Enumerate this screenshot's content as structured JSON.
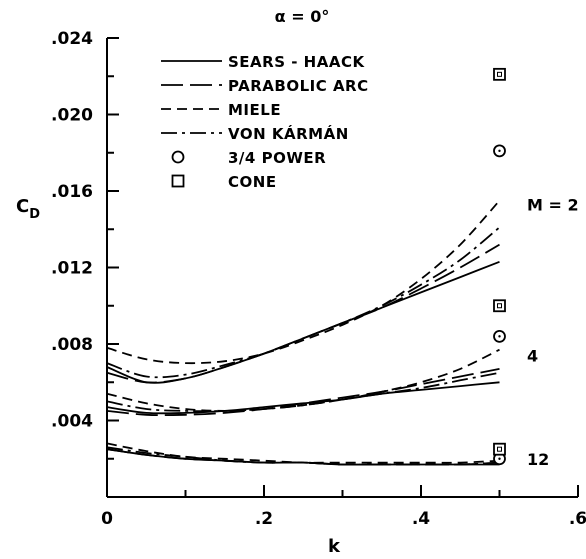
{
  "chart_data": {
    "type": "line",
    "title": "α = 0°",
    "xlabel": "k",
    "ylabel": "C_D",
    "xlim": [
      0,
      0.6
    ],
    "ylim": [
      0,
      0.024
    ],
    "grid": false,
    "legend_placement": "top-left",
    "x_ticks": [
      {
        "value": 0,
        "label": "0"
      },
      {
        "value": 0.2,
        "label": ".2"
      },
      {
        "value": 0.4,
        "label": ".4"
      },
      {
        "value": 0.6,
        "label": ".6"
      }
    ],
    "y_ticks": [
      {
        "value": 0.004,
        "label": ".004"
      },
      {
        "value": 0.008,
        "label": ".008"
      },
      {
        "value": 0.012,
        "label": ".012"
      },
      {
        "value": 0.016,
        "label": ".016"
      },
      {
        "value": 0.02,
        "label": ".020"
      },
      {
        "value": 0.024,
        "label": ".024"
      }
    ],
    "legend": [
      {
        "label": "SEARS - HAACK",
        "style": "solid"
      },
      {
        "label": "PARABOLIC ARC",
        "style": "longdash"
      },
      {
        "label": "MIELE",
        "style": "dash"
      },
      {
        "label": "VON KÁRMÁN",
        "style": "dashdot"
      },
      {
        "label": "3/4 POWER",
        "style": "circle"
      },
      {
        "label": "CONE",
        "style": "square"
      }
    ],
    "annotations": [
      {
        "text": "M = 2",
        "x": 0.535,
        "y": 0.0153
      },
      {
        "text": "4",
        "x": 0.535,
        "y": 0.0074
      },
      {
        "text": "12",
        "x": 0.535,
        "y": 0.002
      }
    ],
    "x": [
      0,
      0.05,
      0.1,
      0.15,
      0.2,
      0.25,
      0.3,
      0.35,
      0.4,
      0.45,
      0.5
    ],
    "series": [
      {
        "name": "SEARS - HAACK",
        "style": "solid",
        "mach": "2",
        "values": [
          0.0068,
          0.006,
          0.0062,
          0.0068,
          0.0075,
          0.0083,
          0.0091,
          0.0099,
          0.0107,
          0.0115,
          0.0123
        ]
      },
      {
        "name": "PARABOLIC ARC",
        "style": "longdash",
        "mach": "2",
        "values": [
          0.0065,
          0.006,
          0.0062,
          0.0068,
          0.0075,
          0.0083,
          0.0091,
          0.0099,
          0.0109,
          0.012,
          0.0132
        ]
      },
      {
        "name": "MIELE",
        "style": "dash",
        "mach": "2",
        "values": [
          0.0078,
          0.0072,
          0.007,
          0.0071,
          0.0075,
          0.0082,
          0.009,
          0.01,
          0.0114,
          0.0132,
          0.0155
        ]
      },
      {
        "name": "VON KÁRMÁN",
        "style": "dashdot",
        "mach": "2",
        "values": [
          0.007,
          0.0063,
          0.0064,
          0.0069,
          0.0075,
          0.0083,
          0.0091,
          0.01,
          0.0111,
          0.0124,
          0.0141
        ]
      },
      {
        "name": "SEARS - HAACK",
        "style": "solid",
        "mach": "4",
        "values": [
          0.0047,
          0.0044,
          0.0044,
          0.0045,
          0.0047,
          0.0049,
          0.0051,
          0.0054,
          0.0056,
          0.0058,
          0.006
        ]
      },
      {
        "name": "PARABOLIC ARC",
        "style": "longdash",
        "mach": "4",
        "values": [
          0.0045,
          0.0043,
          0.0043,
          0.0044,
          0.0046,
          0.0049,
          0.0052,
          0.0055,
          0.0059,
          0.0063,
          0.0067
        ]
      },
      {
        "name": "MIELE",
        "style": "dash",
        "mach": "4",
        "values": [
          0.0054,
          0.0049,
          0.0046,
          0.0045,
          0.0046,
          0.0048,
          0.0051,
          0.0055,
          0.006,
          0.0067,
          0.0077
        ]
      },
      {
        "name": "VON KÁRMÁN",
        "style": "dashdot",
        "mach": "4",
        "values": [
          0.005,
          0.0046,
          0.0045,
          0.0045,
          0.0046,
          0.0048,
          0.0051,
          0.0054,
          0.0057,
          0.0061,
          0.0065
        ]
      },
      {
        "name": "SEARS - HAACK",
        "style": "solid",
        "mach": "12",
        "values": [
          0.0025,
          0.0022,
          0.002,
          0.0019,
          0.0018,
          0.0018,
          0.0017,
          0.0017,
          0.0017,
          0.0017,
          0.0017
        ]
      },
      {
        "name": "PARABOLIC ARC",
        "style": "longdash",
        "mach": "12",
        "values": [
          0.0025,
          0.0022,
          0.002,
          0.0019,
          0.0018,
          0.0018,
          0.0017,
          0.0017,
          0.0017,
          0.0017,
          0.0018
        ]
      },
      {
        "name": "MIELE",
        "style": "dash",
        "mach": "12",
        "values": [
          0.0028,
          0.0024,
          0.0021,
          0.002,
          0.0019,
          0.0018,
          0.0018,
          0.0018,
          0.0018,
          0.0018,
          0.0019
        ]
      },
      {
        "name": "VON KÁRMÁN",
        "style": "dashdot",
        "mach": "12",
        "values": [
          0.0026,
          0.0023,
          0.0021,
          0.0019,
          0.0018,
          0.0018,
          0.0017,
          0.0017,
          0.0017,
          0.0017,
          0.0018
        ]
      }
    ],
    "points": [
      {
        "name": "3/4 POWER",
        "marker": "circle",
        "mach": "2",
        "x": 0.5,
        "y": 0.0181
      },
      {
        "name": "CONE",
        "marker": "square",
        "mach": "2",
        "x": 0.5,
        "y": 0.0221
      },
      {
        "name": "3/4 POWER",
        "marker": "circle",
        "mach": "4",
        "x": 0.5,
        "y": 0.0084
      },
      {
        "name": "CONE",
        "marker": "square",
        "mach": "4",
        "x": 0.5,
        "y": 0.01
      },
      {
        "name": "3/4 POWER",
        "marker": "circle",
        "mach": "12",
        "x": 0.5,
        "y": 0.002
      },
      {
        "name": "CONE",
        "marker": "square",
        "mach": "12",
        "x": 0.5,
        "y": 0.0025
      }
    ]
  }
}
